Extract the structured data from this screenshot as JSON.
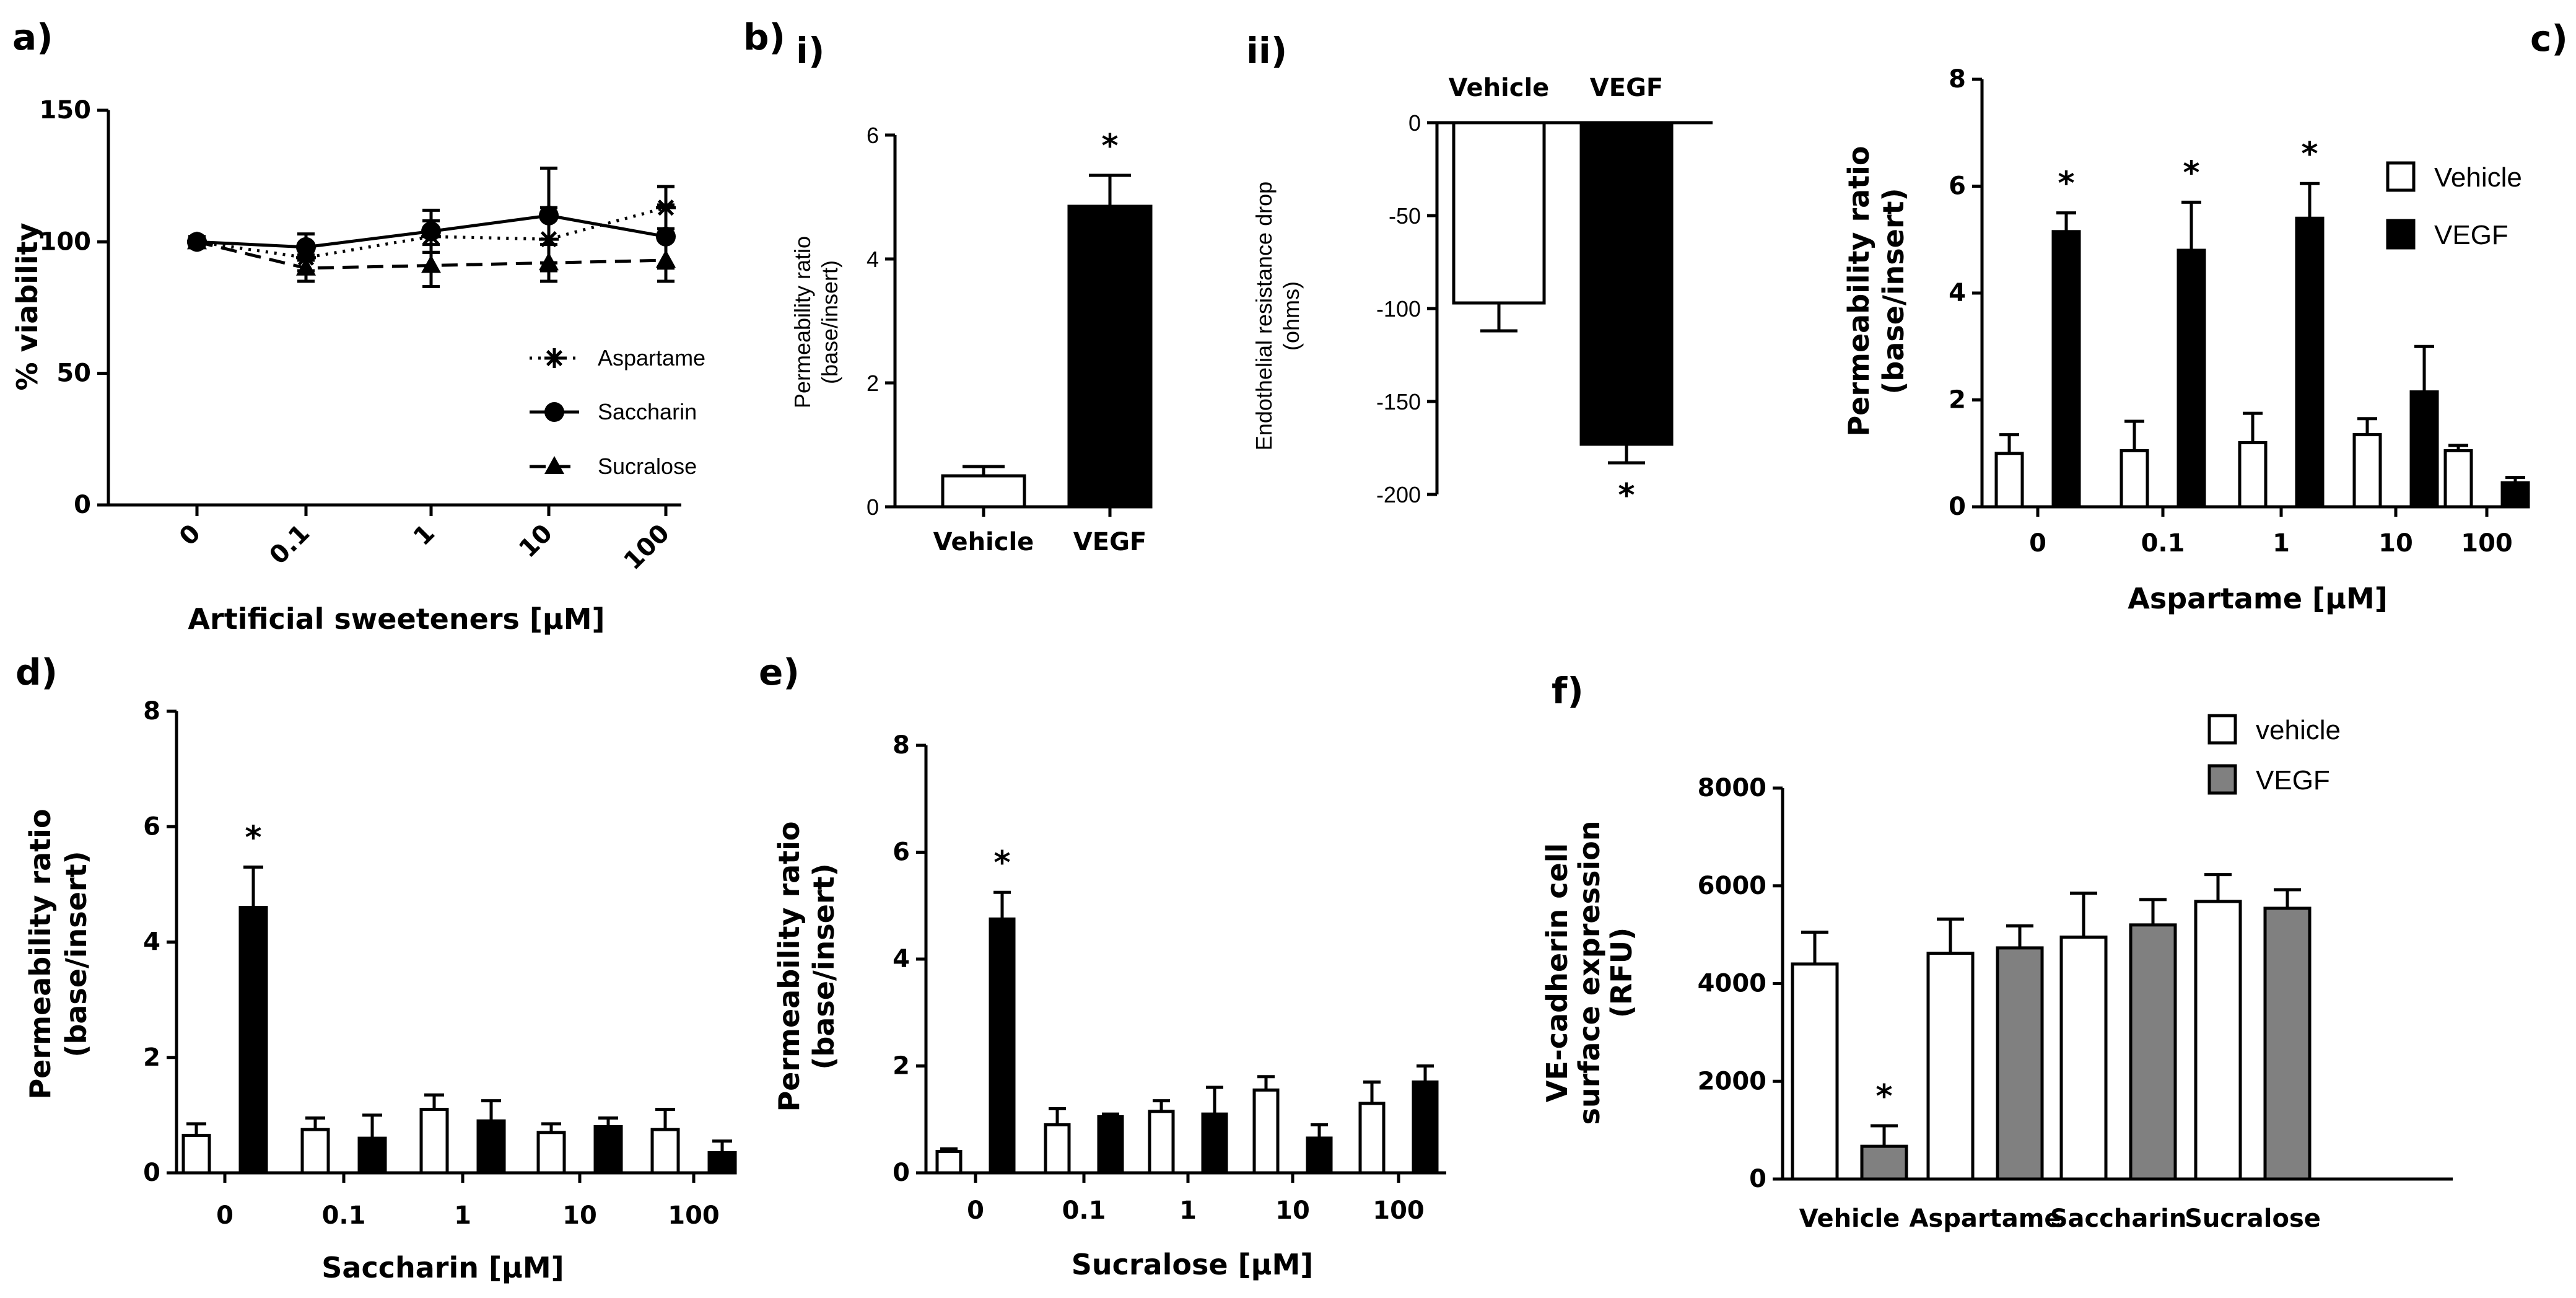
{
  "chart_data": [
    {
      "id": "a",
      "type": "line",
      "panel_label": "a)",
      "xlabel": "Artificial sweeteners [μM]",
      "ylabel": "% viability",
      "categories": [
        "0",
        "0.1",
        "1",
        "10",
        "100"
      ],
      "ylim": [
        0,
        150
      ],
      "yticks": [
        0,
        50,
        100,
        150
      ],
      "series": [
        {
          "name": "Aspartame",
          "values": [
            100,
            94,
            102,
            101,
            113
          ],
          "errors": [
            2,
            5,
            6,
            12,
            8
          ],
          "marker": "asterisk",
          "dash": "dotted"
        },
        {
          "name": "Saccharin",
          "values": [
            100,
            98,
            104,
            110,
            102
          ],
          "errors": [
            2,
            5,
            8,
            18,
            12
          ],
          "marker": "circle",
          "dash": "solid"
        },
        {
          "name": "Sucralose",
          "values": [
            100,
            90,
            91,
            92,
            93
          ],
          "errors": [
            2,
            5,
            8,
            7,
            8
          ],
          "marker": "triangle",
          "dash": "dashed"
        }
      ]
    },
    {
      "id": "bi",
      "type": "bar",
      "panel_label": "b)",
      "sub_label": "i)",
      "ylabel_lines": [
        "Permeability ratio",
        "(base/insert)"
      ],
      "categories": [
        "Vehicle",
        "VEGF"
      ],
      "ylim": [
        0,
        6
      ],
      "yticks": [
        0,
        2,
        4,
        6
      ],
      "series": [
        {
          "name": "",
          "values": [
            0.5,
            4.85
          ],
          "errors": [
            0.15,
            0.5
          ],
          "fills": [
            "#ffffff",
            "#000000"
          ]
        }
      ],
      "significance": [
        false,
        true
      ],
      "sig_mark": "*"
    },
    {
      "id": "bii",
      "type": "bar",
      "sub_label": "ii)",
      "ylabel_lines": [
        "Endothelial resistance drop",
        "(ohms)"
      ],
      "categories": [
        "Vehicle",
        "VEGF"
      ],
      "ylim": [
        -200,
        0
      ],
      "yticks": [
        0,
        -50,
        -100,
        -150,
        -200
      ],
      "series": [
        {
          "name": "",
          "values": [
            -97,
            -173
          ],
          "errors": [
            15,
            10
          ],
          "fills": [
            "#ffffff",
            "#000000"
          ]
        }
      ],
      "significance": [
        false,
        true
      ],
      "sig_mark": "*"
    },
    {
      "id": "c",
      "type": "bar",
      "panel_label": "c)",
      "xlabel": "Aspartame [μM]",
      "ylabel_lines": [
        "Permeability ratio",
        "(base/insert)"
      ],
      "categories": [
        "0",
        "0.1",
        "1",
        "10",
        "100"
      ],
      "ylim": [
        0,
        8
      ],
      "yticks": [
        0,
        2,
        4,
        6,
        8
      ],
      "series": [
        {
          "name": "Vehicle",
          "values": [
            1.0,
            1.05,
            1.2,
            1.35,
            1.05
          ],
          "errors": [
            0.35,
            0.55,
            0.55,
            0.3,
            0.1
          ],
          "fill": "#ffffff"
        },
        {
          "name": "VEGF",
          "values": [
            5.15,
            4.8,
            5.4,
            2.15,
            0.45
          ],
          "errors": [
            0.35,
            0.9,
            0.65,
            0.85,
            0.1
          ],
          "fill": "#000000"
        }
      ],
      "significance": [
        true,
        true,
        true,
        false,
        false
      ],
      "sig_mark": "*"
    },
    {
      "id": "d",
      "type": "bar",
      "panel_label": "d)",
      "xlabel": "Saccharin [μM]",
      "ylabel_lines": [
        "Permeability ratio",
        "(base/insert)"
      ],
      "categories": [
        "0",
        "0.1",
        "1",
        "10",
        "100"
      ],
      "ylim": [
        0,
        8
      ],
      "yticks": [
        0,
        2,
        4,
        6,
        8
      ],
      "series": [
        {
          "name": "Vehicle",
          "values": [
            0.65,
            0.75,
            1.1,
            0.7,
            0.75
          ],
          "errors": [
            0.2,
            0.2,
            0.25,
            0.15,
            0.35
          ],
          "fill": "#ffffff"
        },
        {
          "name": "VEGF",
          "values": [
            4.6,
            0.6,
            0.9,
            0.8,
            0.35
          ],
          "errors": [
            0.7,
            0.4,
            0.35,
            0.15,
            0.2
          ],
          "fill": "#000000"
        }
      ],
      "significance": [
        true,
        false,
        false,
        false,
        false
      ],
      "sig_mark": "*"
    },
    {
      "id": "e",
      "type": "bar",
      "panel_label": "e)",
      "xlabel": "Sucralose [μM]",
      "ylabel_lines": [
        "Permeability ratio",
        "(base/insert)"
      ],
      "categories": [
        "0",
        "0.1",
        "1",
        "10",
        "100"
      ],
      "ylim": [
        0,
        8
      ],
      "yticks": [
        0,
        2,
        4,
        6,
        8
      ],
      "series": [
        {
          "name": "Vehicle",
          "values": [
            0.4,
            0.9,
            1.15,
            1.55,
            1.3
          ],
          "errors": [
            0.05,
            0.3,
            0.2,
            0.25,
            0.4
          ],
          "fill": "#ffffff"
        },
        {
          "name": "VEGF",
          "values": [
            4.75,
            1.05,
            1.1,
            0.65,
            1.7
          ],
          "errors": [
            0.5,
            0.05,
            0.5,
            0.25,
            0.3
          ],
          "fill": "#000000"
        }
      ],
      "significance": [
        true,
        false,
        false,
        false,
        false
      ],
      "sig_mark": "*"
    },
    {
      "id": "f",
      "type": "bar",
      "panel_label": "f)",
      "ylabel_lines": [
        "VE-cadherin cell",
        "surface expression",
        "(RFU)"
      ],
      "categories": [
        "Vehicle",
        "Aspartame",
        "Saccharin",
        "Sucralose"
      ],
      "ylim": [
        0,
        8000
      ],
      "yticks": [
        0,
        2000,
        4000,
        6000,
        8000
      ],
      "series": [
        {
          "name": "vehicle",
          "values": [
            4400,
            4620,
            4950,
            5680
          ],
          "errors": [
            650,
            700,
            900,
            550
          ],
          "fill": "#ffffff"
        },
        {
          "name": "VEGF",
          "values": [
            670,
            4730,
            5200,
            5540
          ],
          "errors": [
            420,
            450,
            520,
            380
          ],
          "fill": "#808080"
        }
      ],
      "significance": [
        true,
        false,
        false,
        false
      ],
      "sig_mark": "*"
    }
  ]
}
